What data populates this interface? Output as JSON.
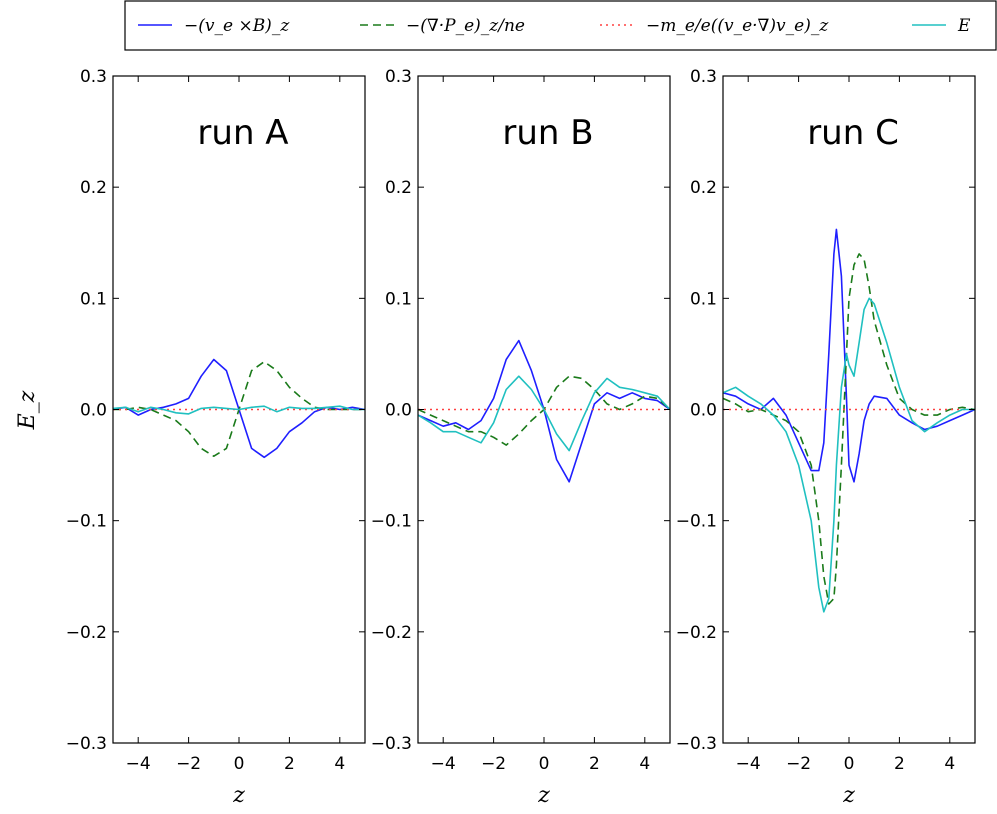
{
  "figure": {
    "ylabel": "E_z",
    "legend": [
      {
        "label": "−(v_e ×B)_z",
        "color": "#1f1fff",
        "dash": "solid"
      },
      {
        "label": "−(∇·P_e)_z/ne",
        "color": "#1a7a1a",
        "dash": "dashed"
      },
      {
        "label": "−m_e/e((v_e·∇)v_e)_z",
        "color": "#ff4040",
        "dash": "dotted"
      },
      {
        "label": "E",
        "color": "#20c0c0",
        "dash": "solid"
      }
    ]
  },
  "chart_data": [
    {
      "type": "line",
      "title": "run A",
      "xlabel": "z",
      "ylabel": "E_z",
      "xlim": [
        -5,
        5
      ],
      "ylim": [
        -0.3,
        0.3
      ],
      "xticks": [
        -4,
        -2,
        0,
        2,
        4
      ],
      "yticks": [
        -0.3,
        -0.2,
        -0.1,
        0.0,
        0.1,
        0.2,
        0.3
      ],
      "series": [
        {
          "name": "−(v_e ×B)_z",
          "x": [
            -5,
            -4.5,
            -4,
            -3.5,
            -3,
            -2.5,
            -2,
            -1.5,
            -1,
            -0.5,
            0,
            0.5,
            1,
            1.5,
            2,
            2.5,
            3,
            3.5,
            4,
            4.5,
            5
          ],
          "y": [
            0,
            0.002,
            -0.005,
            0,
            0.002,
            0.005,
            0.01,
            0.03,
            0.045,
            0.035,
            0,
            -0.035,
            -0.043,
            -0.035,
            -0.02,
            -0.012,
            -0.002,
            0.002,
            0,
            0.002,
            0
          ]
        },
        {
          "name": "−(∇·P_e)_z/ne",
          "x": [
            -5,
            -4.5,
            -4,
            -3.5,
            -3,
            -2.5,
            -2,
            -1.5,
            -1,
            -0.5,
            0,
            0.5,
            1,
            1.5,
            2,
            2.5,
            3,
            3.5,
            4,
            4.5,
            5
          ],
          "y": [
            0,
            0,
            0.002,
            0,
            -0.005,
            -0.01,
            -0.02,
            -0.035,
            -0.042,
            -0.035,
            0,
            0.035,
            0.043,
            0.035,
            0.02,
            0.01,
            0.002,
            0,
            0,
            0,
            0
          ]
        },
        {
          "name": "−m_e/e((v_e·∇)v_e)_z",
          "x": [
            -5,
            5
          ],
          "y": [
            0,
            0
          ]
        },
        {
          "name": "E",
          "x": [
            -5,
            -4.5,
            -4,
            -3.5,
            -3,
            -2.5,
            -2,
            -1.5,
            -1,
            -0.5,
            0,
            0.5,
            1,
            1.5,
            2,
            2.5,
            3,
            3.5,
            4,
            4.5,
            5
          ],
          "y": [
            0.001,
            0.002,
            -0.002,
            0.002,
            0,
            -0.003,
            -0.004,
            0.001,
            0.002,
            0.001,
            0,
            0.002,
            0.003,
            -0.002,
            0.002,
            0.001,
            0.001,
            0.002,
            0.003,
            0,
            0
          ]
        }
      ]
    },
    {
      "type": "line",
      "title": "run B",
      "xlabel": "z",
      "ylabel": "E_z",
      "xlim": [
        -5,
        5
      ],
      "ylim": [
        -0.3,
        0.3
      ],
      "xticks": [
        -4,
        -2,
        0,
        2,
        4
      ],
      "yticks": [
        -0.3,
        -0.2,
        -0.1,
        0.0,
        0.1,
        0.2,
        0.3
      ],
      "series": [
        {
          "name": "−(v_e ×B)_z",
          "x": [
            -5,
            -4.5,
            -4,
            -3.5,
            -3,
            -2.5,
            -2,
            -1.5,
            -1,
            -0.5,
            0,
            0.5,
            1,
            1.5,
            2,
            2.5,
            3,
            3.5,
            4,
            4.5,
            5
          ],
          "y": [
            -0.005,
            -0.01,
            -0.015,
            -0.012,
            -0.018,
            -0.01,
            0.01,
            0.045,
            0.062,
            0.035,
            0,
            -0.045,
            -0.065,
            -0.03,
            0.005,
            0.015,
            0.01,
            0.015,
            0.01,
            0.008,
            0
          ]
        },
        {
          "name": "−(∇·P_e)_z/ne",
          "x": [
            -5,
            -4.5,
            -4,
            -3.5,
            -3,
            -2.5,
            -2,
            -1.5,
            -1,
            -0.5,
            0,
            0.5,
            1,
            1.5,
            2,
            2.5,
            3,
            3.5,
            4,
            4.5,
            5
          ],
          "y": [
            0,
            -0.005,
            -0.01,
            -0.015,
            -0.02,
            -0.02,
            -0.025,
            -0.032,
            -0.022,
            -0.01,
            0,
            0.02,
            0.03,
            0.028,
            0.018,
            0.005,
            0,
            0.005,
            0.012,
            0.01,
            0
          ]
        },
        {
          "name": "−m_e/e((v_e·∇)v_e)_z",
          "x": [
            -5,
            5
          ],
          "y": [
            0,
            0
          ]
        },
        {
          "name": "E",
          "x": [
            -5,
            -4.5,
            -4,
            -3.5,
            -3,
            -2.5,
            -2,
            -1.5,
            -1,
            -0.5,
            0,
            0.5,
            1,
            1.5,
            2,
            2.5,
            3,
            3.5,
            4,
            4.5,
            5
          ],
          "y": [
            -0.005,
            -0.012,
            -0.02,
            -0.02,
            -0.025,
            -0.03,
            -0.012,
            0.018,
            0.03,
            0.018,
            0,
            -0.022,
            -0.037,
            -0.01,
            0.015,
            0.028,
            0.02,
            0.018,
            0.015,
            0.012,
            0
          ]
        }
      ]
    },
    {
      "type": "line",
      "title": "run C",
      "xlabel": "z",
      "ylabel": "E_z",
      "xlim": [
        -5,
        5
      ],
      "ylim": [
        -0.3,
        0.3
      ],
      "xticks": [
        -4,
        -2,
        0,
        2,
        4
      ],
      "yticks": [
        -0.3,
        -0.2,
        -0.1,
        0.0,
        0.1,
        0.2,
        0.3
      ],
      "series": [
        {
          "name": "−(v_e ×B)_z",
          "x": [
            -5,
            -4.5,
            -4,
            -3.5,
            -3,
            -2.5,
            -2,
            -1.5,
            -1.2,
            -1,
            -0.8,
            -0.6,
            -0.5,
            -0.3,
            -0.1,
            0,
            0.2,
            0.4,
            0.6,
            0.8,
            1,
            1.5,
            2,
            2.5,
            3,
            3.5,
            4,
            4.5,
            5
          ],
          "y": [
            0.015,
            0.012,
            0.005,
            0,
            0.01,
            -0.005,
            -0.03,
            -0.055,
            -0.055,
            -0.03,
            0.05,
            0.14,
            0.162,
            0.12,
            0.01,
            -0.05,
            -0.065,
            -0.04,
            -0.01,
            0.005,
            0.012,
            0.01,
            -0.005,
            -0.012,
            -0.018,
            -0.015,
            -0.01,
            -0.005,
            0
          ]
        },
        {
          "name": "−(∇·P_e)_z/ne",
          "x": [
            -5,
            -4.5,
            -4,
            -3.5,
            -3,
            -2.5,
            -2,
            -1.5,
            -1.2,
            -1,
            -0.8,
            -0.6,
            -0.5,
            -0.3,
            -0.1,
            0,
            0.2,
            0.4,
            0.6,
            0.8,
            1,
            1.5,
            2,
            2.5,
            3,
            3.5,
            4,
            4.5,
            5
          ],
          "y": [
            0.01,
            0.005,
            -0.002,
            0,
            -0.005,
            -0.01,
            -0.02,
            -0.05,
            -0.1,
            -0.15,
            -0.175,
            -0.17,
            -0.14,
            -0.05,
            0.05,
            0.1,
            0.13,
            0.14,
            0.135,
            0.11,
            0.08,
            0.04,
            0.01,
            0,
            -0.005,
            -0.005,
            0,
            0.002,
            0
          ]
        },
        {
          "name": "−m_e/e((v_e·∇)v_e)_z",
          "x": [
            -5,
            5
          ],
          "y": [
            0,
            0
          ]
        },
        {
          "name": "E",
          "x": [
            -5,
            -4.5,
            -4,
            -3.5,
            -3,
            -2.5,
            -2,
            -1.5,
            -1.2,
            -1,
            -0.8,
            -0.6,
            -0.5,
            -0.3,
            -0.1,
            0,
            0.2,
            0.4,
            0.6,
            0.8,
            1,
            1.5,
            2,
            2.5,
            3,
            3.5,
            4,
            4.5,
            5
          ],
          "y": [
            0.015,
            0.02,
            0.012,
            0.005,
            -0.005,
            -0.02,
            -0.05,
            -0.1,
            -0.16,
            -0.182,
            -0.17,
            -0.1,
            -0.05,
            0.02,
            0.05,
            0.04,
            0.03,
            0.06,
            0.09,
            0.1,
            0.095,
            0.06,
            0.02,
            -0.01,
            -0.02,
            -0.012,
            -0.005,
            0,
            0
          ]
        }
      ]
    }
  ]
}
